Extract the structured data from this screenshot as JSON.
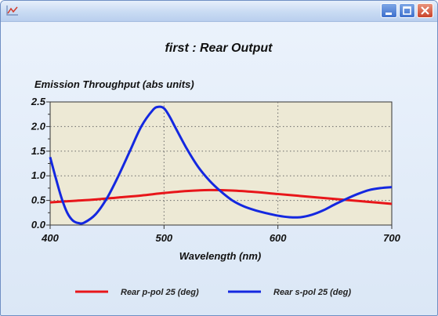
{
  "window": {
    "icon": "chart-icon",
    "buttons": [
      "minimize-icon",
      "maximize-icon",
      "close-icon"
    ]
  },
  "colors": {
    "plot_background": "#ede9d5",
    "p_pol": "#e8161a",
    "s_pol": "#1428e0"
  },
  "chart_data": {
    "type": "line",
    "title": "first : Rear Output",
    "ylabel": "Emission Throughput (abs units)",
    "xlabel": "Wavelength (nm)",
    "xlim": [
      400,
      700
    ],
    "ylim": [
      0,
      2.5
    ],
    "x_ticks": [
      "400",
      "500",
      "600",
      "700"
    ],
    "y_ticks": [
      "0.0",
      "0.5",
      "1.0",
      "1.5",
      "2.0",
      "2.5"
    ],
    "grid": true,
    "legend_position": "bottom",
    "series": [
      {
        "name": "Rear p-pol 25 (deg)",
        "color": "#e8161a",
        "x": [
          400,
          420,
          440,
          460,
          480,
          500,
          520,
          540,
          560,
          580,
          600,
          620,
          640,
          660,
          680,
          700
        ],
        "y": [
          0.46,
          0.49,
          0.52,
          0.56,
          0.6,
          0.65,
          0.69,
          0.71,
          0.7,
          0.67,
          0.63,
          0.59,
          0.55,
          0.51,
          0.47,
          0.43
        ]
      },
      {
        "name": "Rear s-pol 25 (deg)",
        "color": "#1428e0",
        "x": [
          400,
          405,
          410,
          415,
          420,
          425,
          430,
          440,
          450,
          460,
          470,
          480,
          490,
          495,
          500,
          505,
          510,
          520,
          530,
          540,
          550,
          560,
          570,
          580,
          590,
          600,
          610,
          620,
          630,
          640,
          650,
          660,
          670,
          680,
          690,
          700
        ],
        "y": [
          1.38,
          0.95,
          0.55,
          0.25,
          0.09,
          0.04,
          0.05,
          0.22,
          0.55,
          1.0,
          1.5,
          2.0,
          2.33,
          2.4,
          2.37,
          2.2,
          1.98,
          1.55,
          1.18,
          0.9,
          0.68,
          0.5,
          0.38,
          0.3,
          0.24,
          0.19,
          0.16,
          0.16,
          0.21,
          0.3,
          0.42,
          0.53,
          0.63,
          0.71,
          0.75,
          0.77
        ]
      }
    ]
  }
}
